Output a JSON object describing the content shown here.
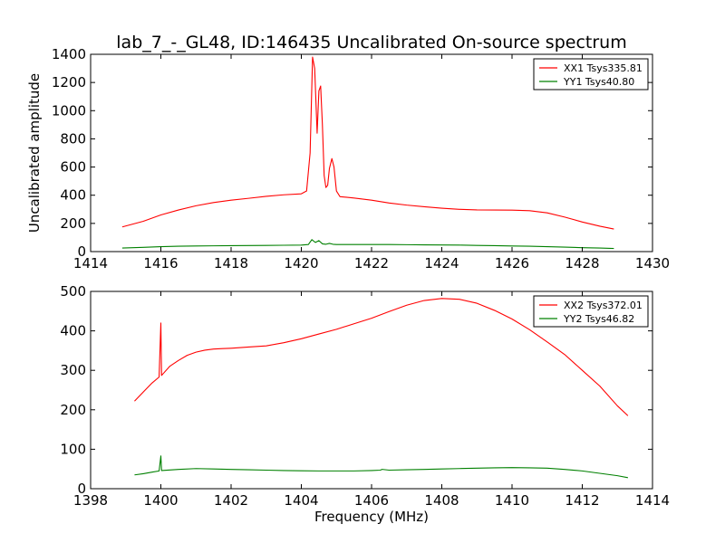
{
  "chart_data": [
    {
      "type": "line",
      "title": "lab_7_-_GL48, ID:146435 Uncalibrated On-source spectrum",
      "xlabel": "",
      "ylabel": "Uncalibrated amplitude",
      "xlim": [
        1414,
        1430
      ],
      "ylim": [
        0,
        1400
      ],
      "xticks": [
        "1414",
        "1416",
        "1418",
        "1420",
        "1422",
        "1424",
        "1426",
        "1428",
        "1430"
      ],
      "yticks": [
        "0",
        "200",
        "400",
        "600",
        "800",
        "1000",
        "1200",
        "1400"
      ],
      "legend_position": "top-right",
      "series": [
        {
          "name": "XX1 Tsys335.81",
          "color": "#ff0000",
          "x": [
            1414.9,
            1415.5,
            1416,
            1416.5,
            1417,
            1417.5,
            1418,
            1418.5,
            1419,
            1419.5,
            1420,
            1420.15,
            1420.25,
            1420.32,
            1420.38,
            1420.45,
            1420.5,
            1420.55,
            1420.6,
            1420.65,
            1420.7,
            1420.75,
            1420.8,
            1420.87,
            1420.93,
            1421,
            1421.1,
            1421.5,
            1422,
            1422.5,
            1423,
            1423.5,
            1424,
            1424.5,
            1425,
            1425.5,
            1426,
            1426.5,
            1427,
            1427.5,
            1428,
            1428.5,
            1428.9
          ],
          "values": [
            175,
            215,
            260,
            295,
            325,
            348,
            365,
            378,
            392,
            403,
            410,
            430,
            700,
            1380,
            1300,
            840,
            1140,
            1175,
            900,
            540,
            455,
            470,
            590,
            660,
            600,
            430,
            390,
            380,
            365,
            345,
            330,
            318,
            308,
            300,
            296,
            295,
            294,
            290,
            275,
            245,
            210,
            180,
            160
          ]
        },
        {
          "name": "YY1 Tsys40.80",
          "color": "#008000",
          "x": [
            1414.9,
            1415.5,
            1416,
            1416.5,
            1417,
            1417.5,
            1418,
            1418.5,
            1419,
            1419.5,
            1420,
            1420.2,
            1420.3,
            1420.4,
            1420.5,
            1420.6,
            1420.7,
            1420.8,
            1420.9,
            1421,
            1421.5,
            1422,
            1422.5,
            1423,
            1423.5,
            1424,
            1424.5,
            1425,
            1425.5,
            1426,
            1426.5,
            1427,
            1427.5,
            1428,
            1428.5,
            1428.9
          ],
          "values": [
            25,
            30,
            35,
            38,
            40,
            41,
            42,
            43,
            44,
            45,
            46,
            50,
            85,
            65,
            78,
            55,
            52,
            58,
            52,
            50,
            50,
            50,
            50,
            49,
            48,
            47,
            46,
            44,
            42,
            40,
            38,
            35,
            32,
            28,
            25,
            22
          ]
        }
      ]
    },
    {
      "type": "line",
      "title": "",
      "xlabel": "Frequency (MHz)",
      "ylabel": "",
      "xlim": [
        1398,
        1414
      ],
      "ylim": [
        0,
        500
      ],
      "xticks": [
        "1398",
        "1400",
        "1402",
        "1404",
        "1406",
        "1408",
        "1410",
        "1412",
        "1414"
      ],
      "yticks": [
        "0",
        "100",
        "200",
        "300",
        "400",
        "500"
      ],
      "legend_position": "top-right",
      "series": [
        {
          "name": "XX2 Tsys372.01",
          "color": "#ff0000",
          "x": [
            1399.25,
            1399.5,
            1399.75,
            1399.95,
            1400,
            1400.02,
            1400.05,
            1400.25,
            1400.5,
            1400.75,
            1401,
            1401.25,
            1401.5,
            1401.75,
            1402,
            1402.5,
            1403,
            1403.5,
            1404,
            1404.5,
            1405,
            1405.5,
            1406,
            1406.5,
            1407,
            1407.5,
            1408,
            1408.5,
            1409,
            1409.5,
            1410,
            1410.5,
            1411,
            1411.5,
            1412,
            1412.5,
            1413,
            1413.3
          ],
          "values": [
            222,
            245,
            268,
            283,
            420,
            287,
            290,
            310,
            325,
            338,
            346,
            351,
            354,
            355,
            356,
            359,
            362,
            370,
            380,
            392,
            404,
            418,
            432,
            449,
            465,
            477,
            482,
            480,
            470,
            452,
            430,
            403,
            372,
            340,
            300,
            260,
            210,
            185
          ]
        },
        {
          "name": "YY2 Tsys46.82",
          "color": "#008000",
          "x": [
            1399.25,
            1399.5,
            1399.75,
            1399.95,
            1400,
            1400.02,
            1400.5,
            1401,
            1401.5,
            1402,
            1402.5,
            1403,
            1403.5,
            1404,
            1404.5,
            1405,
            1405.5,
            1406,
            1406.25,
            1406.3,
            1406.5,
            1407,
            1407.5,
            1408,
            1408.5,
            1409,
            1409.5,
            1410,
            1410.5,
            1411,
            1411.5,
            1412,
            1412.5,
            1413,
            1413.3
          ],
          "values": [
            35,
            38,
            42,
            45,
            83,
            46,
            49,
            51,
            50,
            49,
            48,
            47,
            46,
            45.5,
            45,
            45,
            45,
            46,
            47,
            49,
            47,
            48,
            49,
            50,
            51,
            52,
            53,
            53.5,
            53,
            52,
            49,
            45,
            39,
            33,
            28
          ]
        }
      ]
    }
  ]
}
